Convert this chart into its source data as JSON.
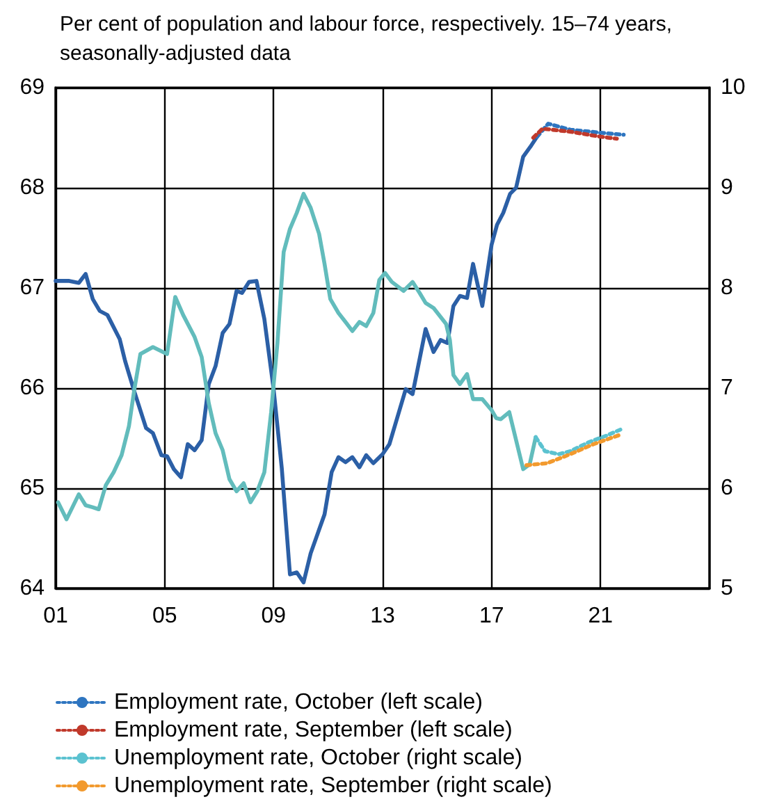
{
  "chart_data": {
    "type": "line",
    "subtitle": "Per cent of population and labour force, respectively. 15–74 years, seasonally-adjusted data",
    "xlim": [
      2001,
      2025
    ],
    "xticks": [
      {
        "value": 2001,
        "label": "01"
      },
      {
        "value": 2005,
        "label": "05"
      },
      {
        "value": 2009,
        "label": "09"
      },
      {
        "value": 2013,
        "label": "13"
      },
      {
        "value": 2017,
        "label": "17"
      },
      {
        "value": 2021,
        "label": "21"
      }
    ],
    "ylim": [
      64,
      69
    ],
    "yticks": [
      64,
      65,
      66,
      67,
      68,
      69
    ],
    "y2lim": [
      5,
      10
    ],
    "y2ticks": [
      5,
      6,
      7,
      8,
      9,
      10
    ],
    "grid": true,
    "legend": "bottom",
    "marker": "none",
    "series": [
      {
        "color": "#2b5fa6",
        "line_style": "solid",
        "x": [
          2001.0,
          2001.5,
          2001.85,
          2002.1,
          2002.36,
          2002.62,
          2002.9,
          2003.35,
          2003.55,
          2003.86,
          2004.32,
          2004.57,
          2004.88,
          2005.09,
          2005.34,
          2005.6,
          2005.85,
          2006.1,
          2006.36,
          2006.62,
          2006.87,
          2007.13,
          2007.38,
          2007.64,
          2007.84,
          2008.1,
          2008.37,
          2008.66,
          2009.0,
          2009.3,
          2009.6,
          2009.85,
          2010.1,
          2010.36,
          2010.87,
          2011.13,
          2011.38,
          2011.64,
          2011.89,
          2012.15,
          2012.4,
          2012.66,
          2013.0,
          2013.25,
          2013.6,
          2013.85,
          2014.1,
          2014.58,
          2014.87,
          2015.13,
          2015.38,
          2015.6,
          2015.84,
          2016.1,
          2016.32,
          2016.66,
          2017.0,
          2017.2,
          2017.43,
          2017.68,
          2017.9,
          2018.16,
          2018.45,
          2018.67
        ],
        "values": [
          67.07,
          67.07,
          67.05,
          67.14,
          66.89,
          66.77,
          66.73,
          66.49,
          66.27,
          65.99,
          65.6,
          65.55,
          65.33,
          65.32,
          65.19,
          65.11,
          65.44,
          65.38,
          65.48,
          66.04,
          66.22,
          66.55,
          66.64,
          66.97,
          66.95,
          67.06,
          67.07,
          66.69,
          65.99,
          65.2,
          64.14,
          64.16,
          64.06,
          64.35,
          64.74,
          65.16,
          65.31,
          65.26,
          65.31,
          65.21,
          65.33,
          65.25,
          65.34,
          65.44,
          65.76,
          65.99,
          65.94,
          66.59,
          66.36,
          66.48,
          66.45,
          66.82,
          66.92,
          66.9,
          67.24,
          66.82,
          67.43,
          67.63,
          67.75,
          67.94,
          68.0,
          68.31,
          68.42,
          68.51
        ]
      },
      {
        "color": "#62bcbc",
        "line_style": "solid",
        "axis": "y2",
        "x": [
          2001.09,
          2001.4,
          2001.85,
          2002.1,
          2002.36,
          2002.58,
          2002.84,
          2003.13,
          2003.42,
          2003.69,
          2003.89,
          2004.11,
          2004.57,
          2005.09,
          2005.39,
          2005.68,
          2006.1,
          2006.36,
          2006.62,
          2006.87,
          2007.13,
          2007.38,
          2007.64,
          2007.9,
          2008.15,
          2008.4,
          2008.66,
          2008.91,
          2009.14,
          2009.37,
          2009.6,
          2009.85,
          2010.1,
          2010.36,
          2010.67,
          2010.87,
          2011.08,
          2011.38,
          2011.64,
          2011.89,
          2012.15,
          2012.4,
          2012.66,
          2012.88,
          2013.09,
          2013.34,
          2013.77,
          2014.1,
          2014.36,
          2014.58,
          2014.87,
          2015.13,
          2015.33,
          2015.47,
          2015.6,
          2015.84,
          2016.1,
          2016.32,
          2016.66,
          2017.0,
          2017.17,
          2017.34,
          2017.65,
          2018.16,
          2018.4,
          2018.62
        ],
        "values": [
          5.86,
          5.69,
          5.94,
          5.83,
          5.81,
          5.79,
          6.03,
          6.16,
          6.33,
          6.62,
          6.99,
          7.34,
          7.41,
          7.34,
          7.91,
          7.73,
          7.51,
          7.31,
          6.85,
          6.55,
          6.38,
          6.09,
          5.97,
          6.05,
          5.86,
          5.97,
          6.16,
          6.76,
          7.45,
          8.36,
          8.59,
          8.75,
          8.94,
          8.8,
          8.54,
          8.24,
          7.89,
          7.75,
          7.66,
          7.57,
          7.66,
          7.62,
          7.75,
          8.08,
          8.15,
          8.06,
          7.97,
          8.06,
          7.95,
          7.85,
          7.8,
          7.71,
          7.64,
          7.48,
          7.13,
          7.04,
          7.14,
          6.89,
          6.89,
          6.78,
          6.7,
          6.69,
          6.76,
          6.19,
          6.24,
          6.51
        ]
      },
      {
        "name": "Employment rate, October (left scale)",
        "color": "#2e75c0",
        "line_style": "dotted",
        "x": [
          2018.67,
          2019.08,
          2019.89,
          2021.0,
          2021.85
        ],
        "values": [
          68.51,
          68.64,
          68.58,
          68.55,
          68.53
        ]
      },
      {
        "name": "Employment rate, September (left scale)",
        "color": "#c0392b",
        "line_style": "dotted",
        "x": [
          2018.53,
          2018.87,
          2019.89,
          2021.0,
          2021.6
        ],
        "values": [
          68.5,
          68.59,
          68.56,
          68.51,
          68.49
        ]
      },
      {
        "name": "Unemployment rate, October (right scale)",
        "color": "#5bc2d0",
        "line_style": "dotted",
        "axis": "y2",
        "x": [
          2018.62,
          2018.96,
          2019.47,
          2019.89,
          2020.57,
          2021.26,
          2021.85
        ],
        "values": [
          6.51,
          6.37,
          6.34,
          6.37,
          6.46,
          6.53,
          6.6
        ]
      },
      {
        "name": "Unemployment rate, September (right scale)",
        "color": "#f29a2e",
        "line_style": "dotted",
        "axis": "y2",
        "x": [
          2018.28,
          2019.04,
          2019.89,
          2020.74,
          2021.68
        ],
        "values": [
          6.23,
          6.25,
          6.34,
          6.44,
          6.53
        ]
      }
    ]
  }
}
